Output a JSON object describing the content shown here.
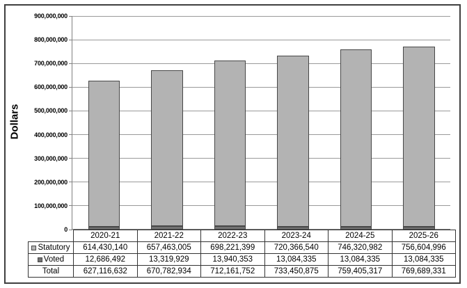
{
  "colors": {
    "frame_border": "#3f3f3f",
    "gridline": "#999999",
    "axis": "#808080",
    "bar_border": "#474747",
    "statutory_fill": "#b3b3b3",
    "voted_fill": "#737373",
    "table_border": "#333333",
    "background": "#ffffff",
    "text": "#000000"
  },
  "chart_data": {
    "type": "bar",
    "stacked": true,
    "title": "",
    "xlabel": "",
    "ylabel": "Dollars",
    "ylim": [
      0,
      900000000
    ],
    "ytick_step": 100000000,
    "ytick_values": [
      0,
      100000000,
      200000000,
      300000000,
      400000000,
      500000000,
      600000000,
      700000000,
      800000000,
      900000000
    ],
    "ytick_labels": [
      "0",
      "100,000,000",
      "200,000,000",
      "300,000,000",
      "400,000,000",
      "500,000,000",
      "600,000,000",
      "700,000,000",
      "800,000,000",
      "900,000,000"
    ],
    "grid": true,
    "legend_position": "table-left",
    "categories": [
      "2020-21",
      "2021-22",
      "2022-23",
      "2023-24",
      "2024-25",
      "2025-26"
    ],
    "series": [
      {
        "name": "Statutory",
        "color": "#b3b3b3",
        "stack_position": "top",
        "values": [
          614430140,
          657463005,
          698221399,
          720366540,
          746320982,
          756604996
        ],
        "display": [
          "614,430,140",
          "657,463,005",
          "698,221,399",
          "720,366,540",
          "746,320,982",
          "756,604,996"
        ]
      },
      {
        "name": "Voted",
        "color": "#737373",
        "stack_position": "bottom",
        "values": [
          12686492,
          13319929,
          13940353,
          13084335,
          13084335,
          13084335
        ],
        "display": [
          "12,686,492",
          "13,319,929",
          "13,940,353",
          "13,084,335",
          "13,084,335",
          "13,084,335"
        ]
      }
    ],
    "table": {
      "rows": [
        {
          "label": "Statutory",
          "marker": "statutory",
          "values": [
            "614,430,140",
            "657,463,005",
            "698,221,399",
            "720,366,540",
            "746,320,982",
            "756,604,996"
          ]
        },
        {
          "label": "Voted",
          "marker": "voted",
          "values": [
            "12,686,492",
            "13,319,929",
            "13,940,353",
            "13,084,335",
            "13,084,335",
            "13,084,335"
          ]
        },
        {
          "label": "Total",
          "marker": null,
          "values": [
            "627,116,632",
            "670,782,934",
            "712,161,752",
            "733,450,875",
            "759,405,317",
            "769,689,331"
          ]
        }
      ]
    }
  }
}
